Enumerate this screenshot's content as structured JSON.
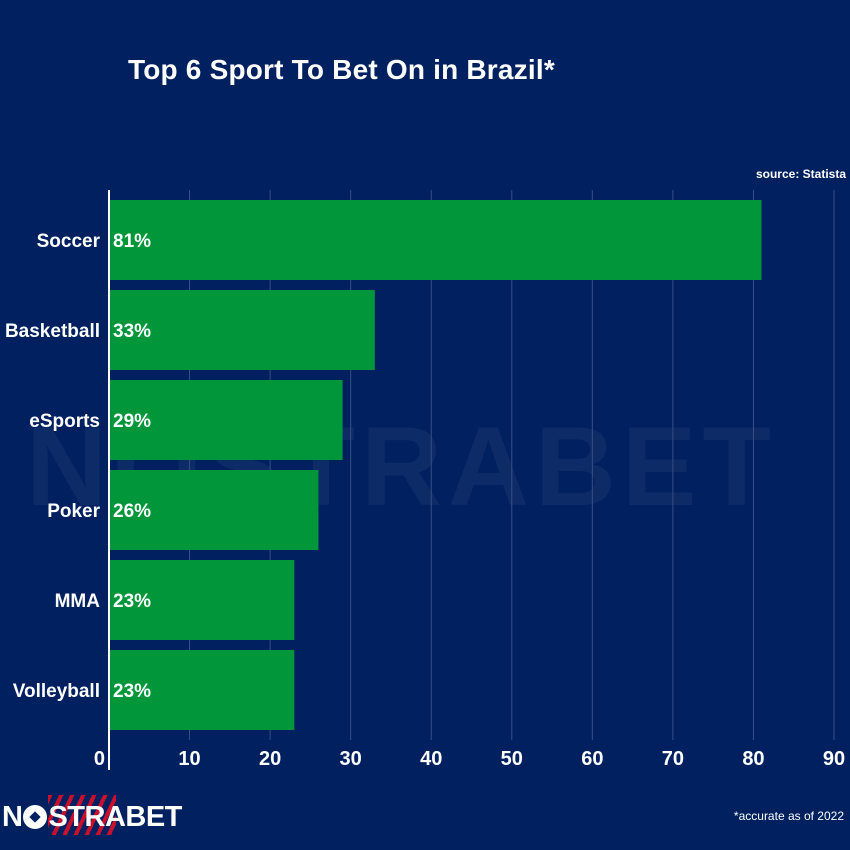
{
  "title": "Top 6 Sport To Bet On in Brazil*",
  "source": "source: Statista",
  "footnote": "*accurate as of 2022",
  "logo": {
    "text_before": "N",
    "text_after": "STRABET",
    "icon": "soccer-ball-icon"
  },
  "watermark": "NOSTRABET",
  "colors": {
    "background": "#00205f",
    "bar": "#009639",
    "text": "#ffffff",
    "grid": "#3a4f86"
  },
  "chart_data": {
    "type": "bar",
    "orientation": "horizontal",
    "title": "Top 6 Sport To Bet On in Brazil*",
    "categories": [
      "Soccer",
      "Basketball",
      "eSports",
      "Poker",
      "MMA",
      "Volleyball"
    ],
    "values": [
      81,
      33,
      29,
      26,
      23,
      23
    ],
    "value_labels": [
      "81%",
      "33%",
      "29%",
      "26%",
      "23%",
      "23%"
    ],
    "xlim": [
      0,
      90
    ],
    "xticks": [
      0,
      10,
      20,
      30,
      40,
      50,
      60,
      70,
      80,
      90
    ],
    "grid": true,
    "legend": "none"
  }
}
